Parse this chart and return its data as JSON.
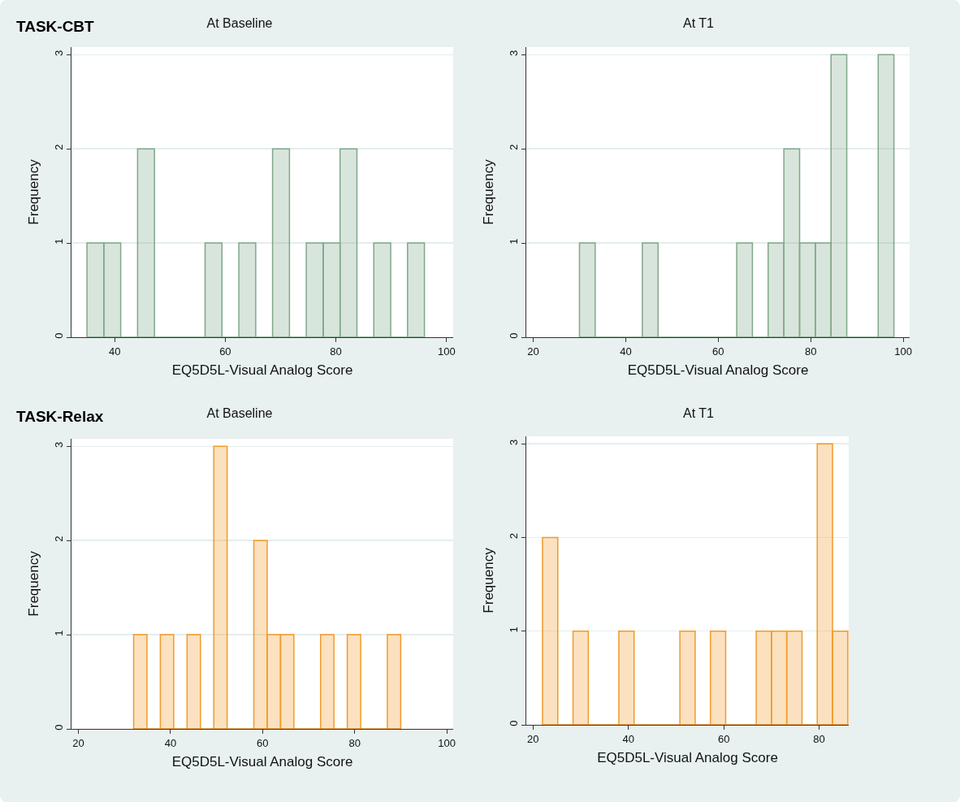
{
  "chart_data": [
    {
      "type": "histogram",
      "title": "At Baseline",
      "xlabel": "EQ5D5L-Visual Analog Score",
      "ylabel": "Frequency",
      "annotations": [
        "TASK-CBT"
      ],
      "bins": [
        35,
        38.05,
        41.1,
        44.15,
        47.2,
        50.25,
        53.3,
        56.35,
        59.4,
        62.45,
        65.5,
        68.55,
        71.6,
        74.65,
        77.7,
        80.75,
        83.8,
        86.85,
        89.9,
        92.95,
        96
      ],
      "values": [
        1,
        1,
        0,
        2,
        0,
        0,
        0,
        1,
        0,
        1,
        0,
        2,
        0,
        1,
        1,
        2,
        0,
        1,
        0,
        1
      ],
      "color": "#7fa88a",
      "xlim": [
        32.2,
        101.2
      ],
      "xticks": [
        40,
        60,
        80,
        100
      ],
      "ylim": [
        0,
        3.08
      ],
      "yticks": [
        0,
        1,
        2,
        3
      ],
      "grid": "y"
    },
    {
      "type": "histogram",
      "title": "At T1",
      "xlabel": "EQ5D5L-Visual Analog Score",
      "ylabel": "Frequency",
      "bins": [
        30,
        33.4,
        36.8,
        40.2,
        43.6,
        47,
        50.4,
        53.8,
        57.2,
        60.6,
        64,
        67.4,
        70.8,
        74.2,
        77.6,
        81,
        84.4,
        87.8,
        91.2,
        94.6,
        98
      ],
      "values": [
        1,
        0,
        0,
        0,
        1,
        0,
        0,
        0,
        0,
        0,
        1,
        0,
        1,
        2,
        1,
        1,
        3,
        0,
        0,
        3
      ],
      "color": "#7fa88a",
      "xlim": [
        18.5,
        101.4
      ],
      "xticks": [
        20,
        40,
        60,
        80,
        100
      ],
      "ylim": [
        0,
        3.08
      ],
      "yticks": [
        0,
        1,
        2,
        3
      ],
      "grid": "y"
    },
    {
      "type": "histogram",
      "title": "At Baseline",
      "xlabel": "EQ5D5L-Visual Analog Score",
      "ylabel": "Frequency",
      "annotations": [
        "TASK-Relax"
      ],
      "bins": [
        32,
        34.9,
        37.8,
        40.7,
        43.6,
        46.5,
        49.4,
        52.3,
        55.2,
        58.1,
        61,
        63.9,
        66.8,
        69.7,
        72.6,
        75.5,
        78.4,
        81.3,
        84.2,
        87.1,
        90
      ],
      "values": [
        1,
        0,
        1,
        0,
        1,
        0,
        3,
        0,
        0,
        2,
        1,
        1,
        0,
        0,
        1,
        0,
        1,
        0,
        0,
        1
      ],
      "color": "#f39a2a",
      "xlim": [
        18.5,
        101.4
      ],
      "xticks": [
        20,
        40,
        60,
        80,
        100
      ],
      "ylim": [
        0,
        3.08
      ],
      "yticks": [
        0,
        1,
        2,
        3
      ],
      "grid": "y"
    },
    {
      "type": "histogram",
      "title": "At T1",
      "xlabel": "EQ5D5L-Visual Analog Score",
      "ylabel": "Frequency",
      "bins": [
        22,
        25.2,
        28.4,
        31.6,
        34.8,
        38,
        41.2,
        44.4,
        47.6,
        50.8,
        54,
        57.2,
        60.4,
        63.6,
        66.8,
        70,
        73.2,
        76.4,
        79.6,
        82.8,
        86
      ],
      "values": [
        2,
        0,
        1,
        0,
        0,
        1,
        0,
        0,
        0,
        1,
        0,
        1,
        0,
        0,
        1,
        1,
        1,
        0,
        3,
        1
      ],
      "color": "#f39a2a",
      "xlim": [
        18.6,
        86.2
      ],
      "xticks": [
        20,
        40,
        60,
        80
      ],
      "ylim": [
        0,
        3.08
      ],
      "yticks": [
        0,
        1,
        2,
        3
      ],
      "grid": "y"
    }
  ]
}
